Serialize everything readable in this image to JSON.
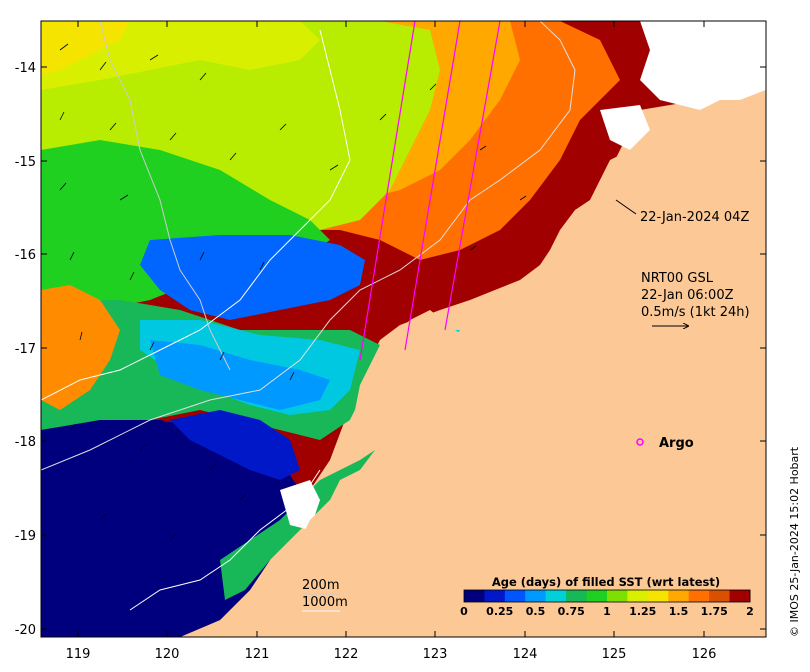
{
  "map": {
    "colors": {
      "land": "#fbc896",
      "missing": "#ffffff",
      "age": [
        "#00007f",
        "#0018c8",
        "#0055ff",
        "#0099ff",
        "#00d0d8",
        "#18b858",
        "#1fd020",
        "#7ee000",
        "#d8f000",
        "#f5e400",
        "#ffa800",
        "#ff7000",
        "#d85000",
        "#a00000"
      ]
    },
    "lon_ticks": [
      "119",
      "120",
      "121",
      "122",
      "123",
      "124",
      "125",
      "126"
    ],
    "lat_ticks": [
      "-14",
      "-15",
      "-16",
      "-17",
      "-18",
      "-19",
      "-20"
    ],
    "annotations": {
      "swath_time": "22-Jan-2024 04Z",
      "current_product": "NRT00 GSL",
      "current_time": "22-Jan 06:00Z",
      "current_scale": "0.5m/s (1kt 24h)",
      "argo": "Argo",
      "contour_200": "200m",
      "contour_1000": "1000m"
    },
    "colorbar": {
      "title": "Age (days) of filled SST (wrt latest)",
      "ticks": [
        "0",
        "0.25",
        "0.5",
        "0.75",
        "1",
        "1.25",
        "1.5",
        "1.75",
        "2"
      ]
    },
    "credit": "© IMOS 25-Jan-2024 15:02 Hobart"
  }
}
